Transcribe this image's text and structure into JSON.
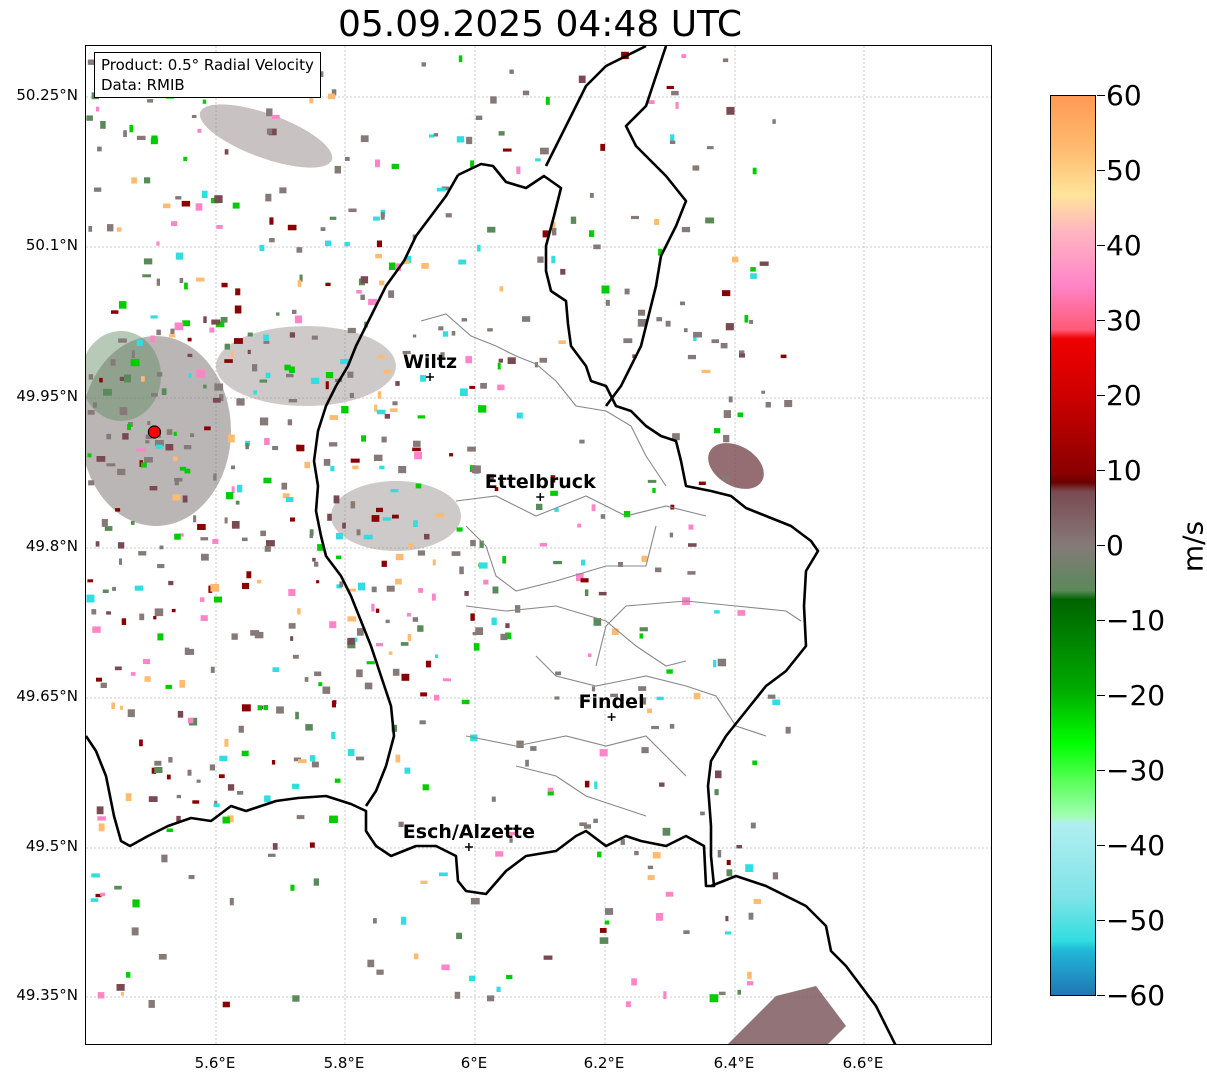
{
  "title": "05.09.2025 04:48 UTC",
  "info": {
    "product": "Product: 0.5° Radial Velocity",
    "data": "Data: RMIB"
  },
  "axes": {
    "lat_labels": [
      "50.25°N",
      "50.1°N",
      "49.95°N",
      "49.8°N",
      "49.65°N",
      "49.5°N",
      "49.35°N"
    ],
    "lon_labels": [
      "5.6°E",
      "5.8°E",
      "6°E",
      "6.2°E",
      "6.4°E",
      "6.6°E"
    ]
  },
  "colorbar": {
    "unit": "m/s",
    "ticks": [
      "60",
      "50",
      "40",
      "30",
      "20",
      "10",
      "0",
      "−10",
      "−20",
      "−30",
      "−40",
      "−50",
      "−60"
    ],
    "min": -60,
    "max": 60
  },
  "cities": [
    {
      "name": "Wiltz",
      "lon": 5.93,
      "lat": 49.97
    },
    {
      "name": "Ettelbruck",
      "lon": 6.1,
      "lat": 49.85
    },
    {
      "name": "Findel",
      "lon": 6.21,
      "lat": 49.63
    },
    {
      "name": "Esch/Alzette",
      "lon": 5.99,
      "lat": 49.5
    }
  ],
  "radar_site": {
    "lon": 5.505,
    "lat": 49.915
  },
  "colors": {
    "border": "#000000",
    "canton_lines": "#888888",
    "grid": "#bbbbbb",
    "radar_marker": "#ff0000"
  }
}
